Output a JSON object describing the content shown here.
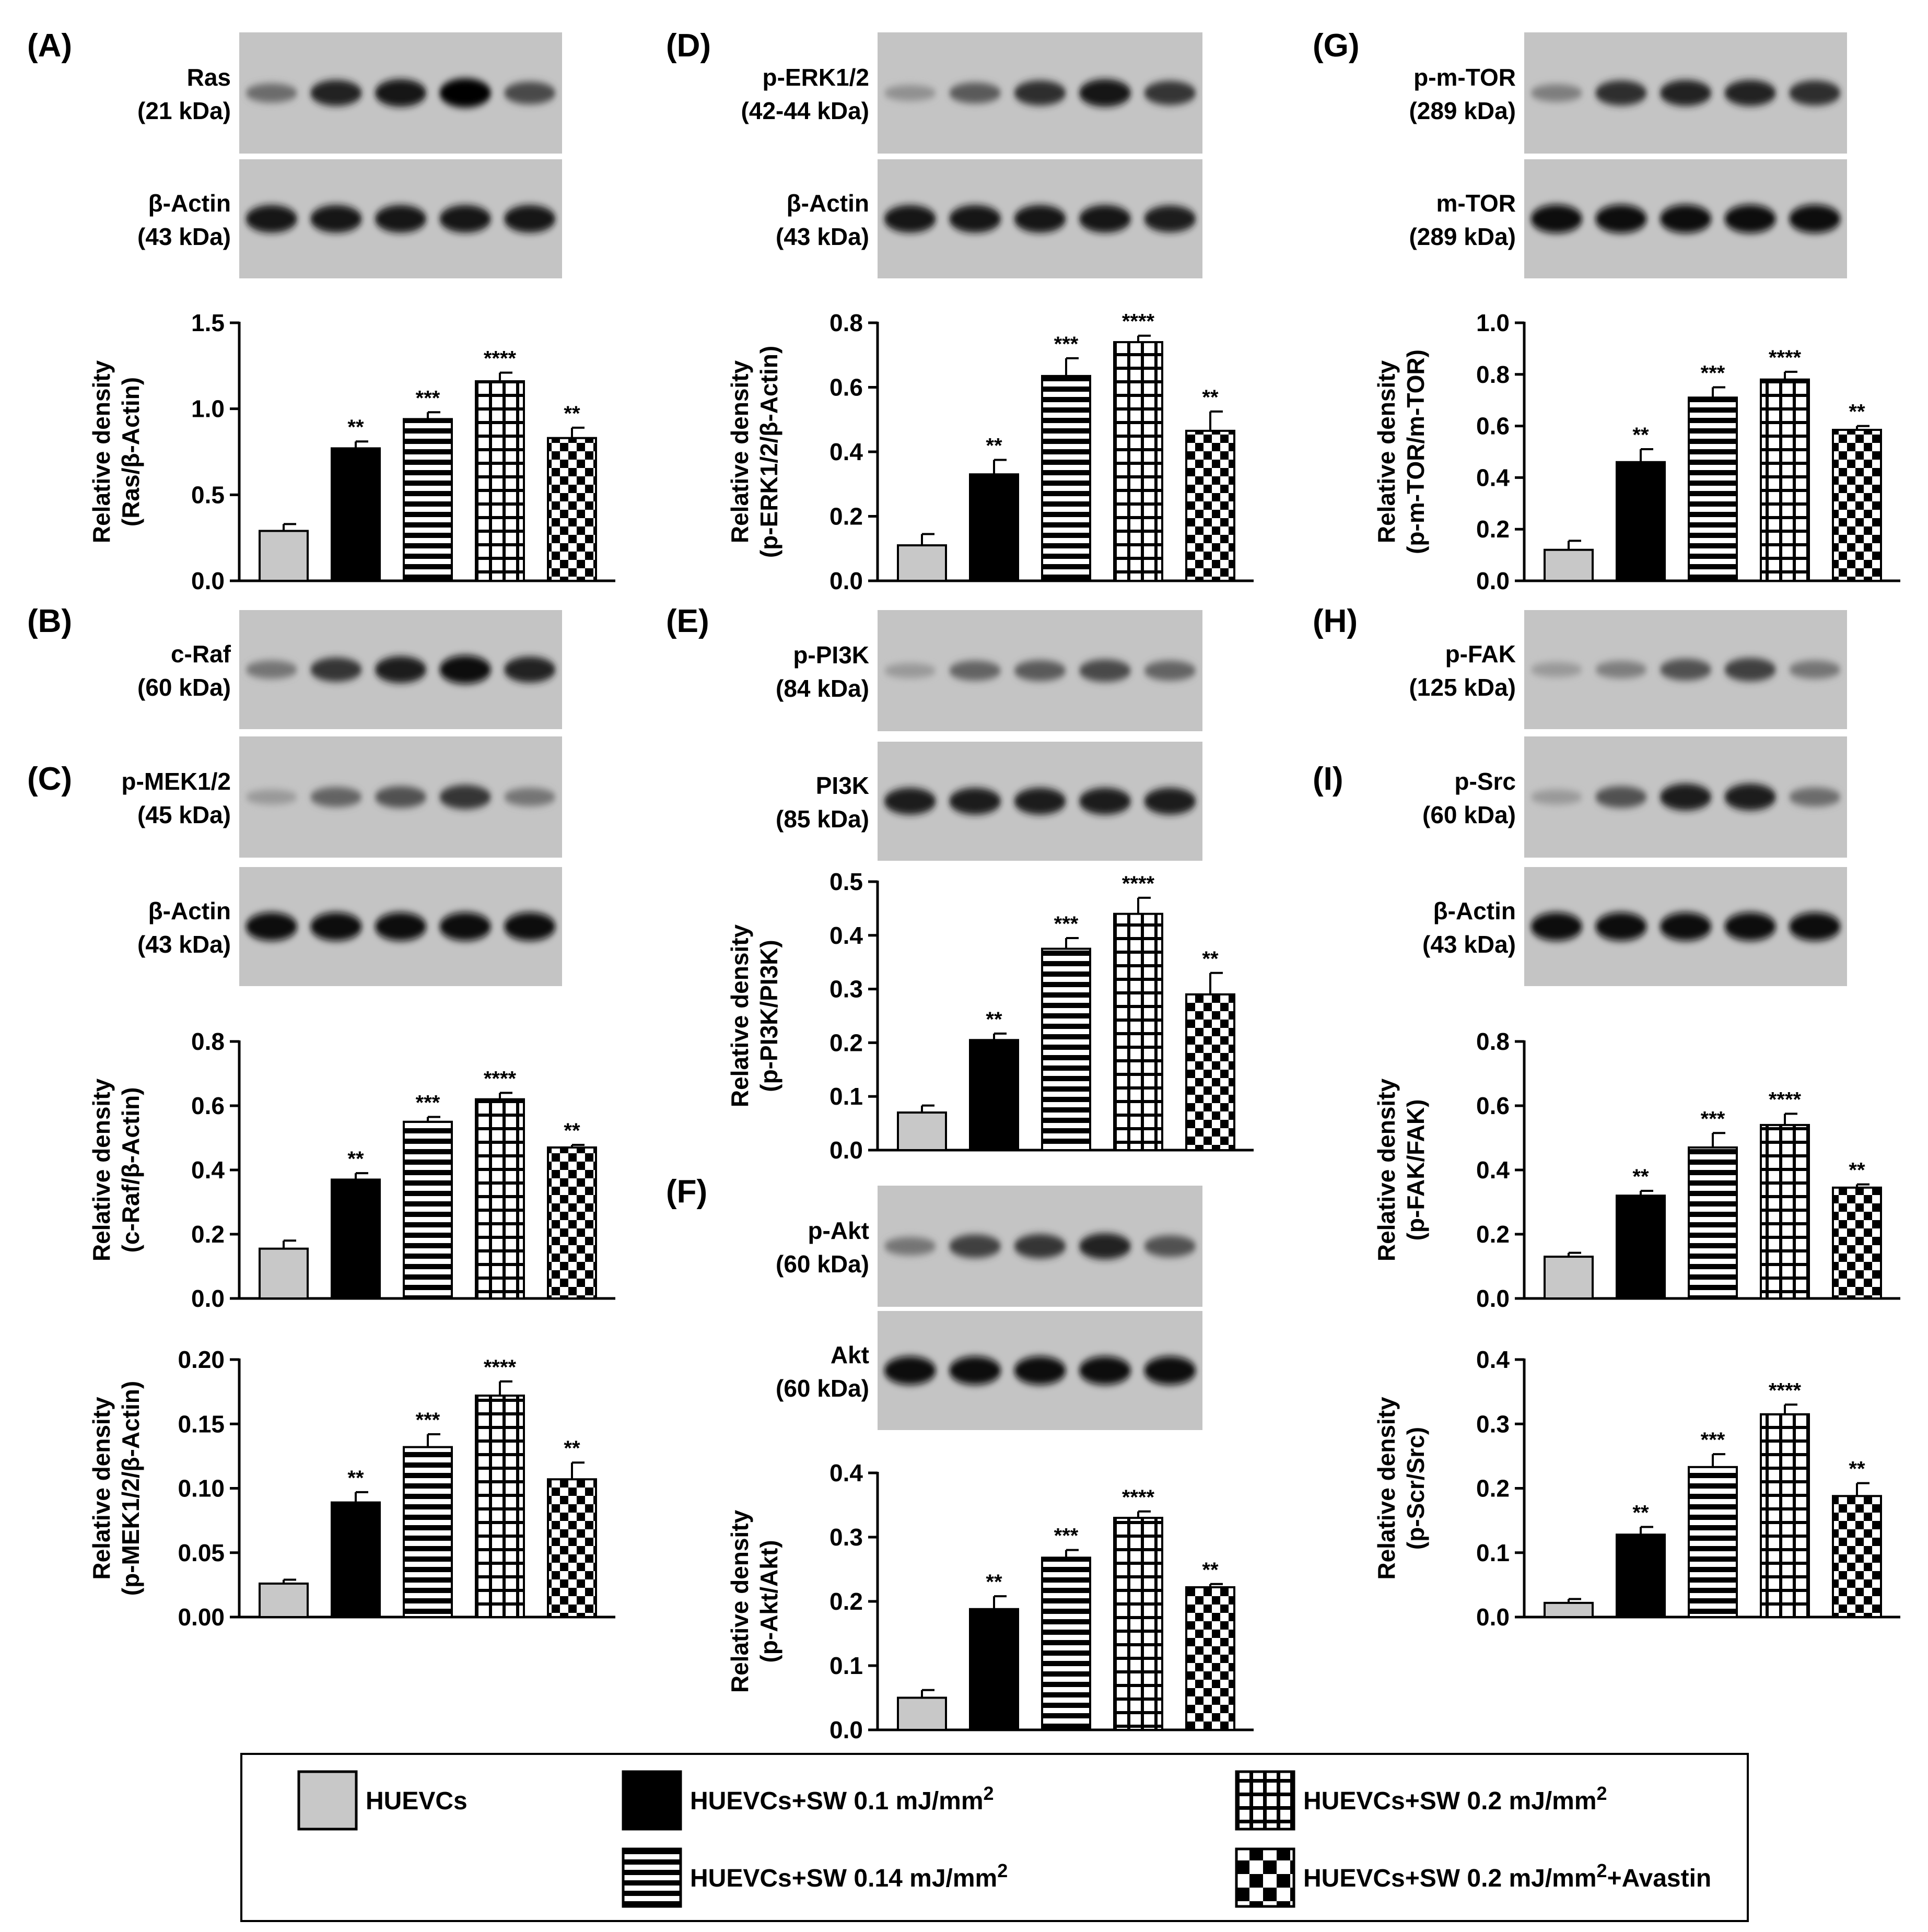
{
  "panels": {
    "A": {
      "letter": "(A)"
    },
    "B": {
      "letter": "(B)"
    },
    "C": {
      "letter": "(C)"
    },
    "D": {
      "letter": "(D)"
    },
    "E": {
      "letter": "(E)"
    },
    "F": {
      "letter": "(F)"
    },
    "G": {
      "letter": "(G)"
    },
    "H": {
      "letter": "(H)"
    },
    "I": {
      "letter": "(I)"
    }
  },
  "blots": {
    "ras": {
      "name": "Ras",
      "kda": "(21 kDa)",
      "intensity": [
        0.4,
        0.8,
        0.9,
        1.0,
        0.6
      ]
    },
    "actin_a": {
      "name": "β-Actin",
      "kda": "(43 kDa)",
      "intensity": [
        0.9,
        0.9,
        0.9,
        0.9,
        0.9
      ]
    },
    "craf": {
      "name": "c-Raf",
      "kda": "(60 kDa)",
      "intensity": [
        0.35,
        0.7,
        0.85,
        0.95,
        0.8
      ]
    },
    "pmek": {
      "name": "p-MEK1/2",
      "kda": "(45 kDa)",
      "intensity": [
        0.15,
        0.45,
        0.55,
        0.7,
        0.35
      ]
    },
    "actin_c": {
      "name": "β-Actin",
      "kda": "(43 kDa)",
      "intensity": [
        0.95,
        0.95,
        0.95,
        0.95,
        0.95
      ]
    },
    "perk": {
      "name": "p-ERK1/2",
      "kda": "(42-44 kDa)",
      "intensity": [
        0.2,
        0.5,
        0.75,
        0.9,
        0.7
      ]
    },
    "actin_d": {
      "name": "β-Actin",
      "kda": "(43 kDa)",
      "intensity": [
        0.9,
        0.9,
        0.9,
        0.9,
        0.85
      ]
    },
    "ppi3k": {
      "name": "p-PI3K",
      "kda": "(84 kDa)",
      "intensity": [
        0.15,
        0.45,
        0.5,
        0.6,
        0.45
      ]
    },
    "pi3k": {
      "name": "PI3K",
      "kda": "(85 kDa)",
      "intensity": [
        0.85,
        0.85,
        0.85,
        0.85,
        0.85
      ]
    },
    "pakt": {
      "name": "p-Akt",
      "kda": "(60 kDa)",
      "intensity": [
        0.35,
        0.65,
        0.7,
        0.8,
        0.55
      ]
    },
    "akt": {
      "name": "Akt",
      "kda": "(60 kDa)",
      "intensity": [
        0.95,
        0.95,
        0.95,
        0.95,
        0.95
      ]
    },
    "pmtor": {
      "name": "p-m-TOR",
      "kda": "(289 kDa)",
      "intensity": [
        0.3,
        0.75,
        0.8,
        0.8,
        0.75
      ]
    },
    "mtor": {
      "name": "m-TOR",
      "kda": "(289 kDa)",
      "intensity": [
        0.95,
        0.95,
        0.95,
        0.95,
        0.95
      ]
    },
    "pfak": {
      "name": "p-FAK",
      "kda": "(125 kDa)",
      "intensity": [
        0.15,
        0.3,
        0.55,
        0.65,
        0.35
      ]
    },
    "psrc": {
      "name": "p-Src",
      "kda": "(60 kDa)",
      "intensity": [
        0.15,
        0.55,
        0.85,
        0.85,
        0.4
      ]
    },
    "actin_i": {
      "name": "β-Actin",
      "kda": "(43 kDa)",
      "intensity": [
        0.95,
        0.95,
        0.95,
        0.95,
        0.95
      ]
    }
  },
  "legend": {
    "items": [
      {
        "label": "HUEVCs",
        "sup": "",
        "suffix": "",
        "pattern": "gray"
      },
      {
        "label": "HUEVCs+SW 0.1 mJ/mm",
        "sup": "2",
        "suffix": "",
        "pattern": "black"
      },
      {
        "label": "HUEVCs+SW 0.2 mJ/mm",
        "sup": "2",
        "suffix": "",
        "pattern": "grid"
      },
      {
        "label": "HUEVCs+SW 0.14 mJ/mm",
        "sup": "2",
        "suffix": "",
        "pattern": "hstripe"
      },
      {
        "label": "HUEVCs+SW 0.2 mJ/mm",
        "sup": "2",
        "suffix": "+Avastin",
        "pattern": "checker"
      }
    ]
  },
  "colors": {
    "gray_bar": "#c8c8c8",
    "black_bar": "#000000",
    "axis": "#000000",
    "blot_bg": "#c4c4c4"
  },
  "chart_data": [
    {
      "id": "A",
      "type": "bar",
      "ylabel": [
        "Relative density",
        "(Ras/β-Actin)"
      ],
      "ylim": [
        0,
        1.5
      ],
      "ticks": [
        "0.0",
        "0.5",
        "1.0",
        "1.5"
      ],
      "values": [
        0.29,
        0.77,
        0.94,
        1.16,
        0.83
      ],
      "errors": [
        0.04,
        0.04,
        0.04,
        0.05,
        0.06
      ],
      "stars": [
        "",
        "**",
        "***",
        "****",
        "**"
      ]
    },
    {
      "id": "C1",
      "type": "bar",
      "ylabel": [
        "Relative density",
        "(c-Raf/β-Actin)"
      ],
      "ylim": [
        0,
        0.8
      ],
      "ticks": [
        "0.0",
        "0.2",
        "0.4",
        "0.6",
        "0.8"
      ],
      "values": [
        0.155,
        0.37,
        0.55,
        0.62,
        0.47
      ],
      "errors": [
        0.025,
        0.02,
        0.015,
        0.02,
        0.008
      ],
      "stars": [
        "",
        "**",
        "***",
        "****",
        "**"
      ]
    },
    {
      "id": "C2",
      "type": "bar",
      "ylabel": [
        "Relative density",
        "(p-MEK1/2/β-Actin)"
      ],
      "ylim": [
        0,
        0.2
      ],
      "ticks": [
        "0.00",
        "0.05",
        "0.10",
        "0.15",
        "0.20"
      ],
      "values": [
        0.026,
        0.089,
        0.132,
        0.172,
        0.107
      ],
      "errors": [
        0.003,
        0.008,
        0.01,
        0.011,
        0.013
      ],
      "stars": [
        "",
        "**",
        "***",
        "****",
        "**"
      ]
    },
    {
      "id": "D",
      "type": "bar",
      "ylabel": [
        "Relative density",
        "(p-ERK1/2/β-Actin)"
      ],
      "ylim": [
        0,
        0.8
      ],
      "ticks": [
        "0.0",
        "0.2",
        "0.4",
        "0.6",
        "0.8"
      ],
      "values": [
        0.11,
        0.33,
        0.635,
        0.74,
        0.465
      ],
      "errors": [
        0.035,
        0.045,
        0.055,
        0.02,
        0.06
      ],
      "stars": [
        "",
        "**",
        "***",
        "****",
        "**"
      ]
    },
    {
      "id": "E",
      "type": "bar",
      "ylabel": [
        "Relative density",
        "(p-PI3K/PI3K)"
      ],
      "ylim": [
        0,
        0.5
      ],
      "ticks": [
        "0.0",
        "0.1",
        "0.2",
        "0.3",
        "0.4",
        "0.5"
      ],
      "values": [
        0.07,
        0.205,
        0.375,
        0.44,
        0.29
      ],
      "errors": [
        0.013,
        0.012,
        0.02,
        0.03,
        0.04
      ],
      "stars": [
        "",
        "**",
        "***",
        "****",
        "**"
      ]
    },
    {
      "id": "F",
      "type": "bar",
      "ylabel": [
        "Relative density",
        "(p-Akt/Akt)"
      ],
      "ylim": [
        0,
        0.4
      ],
      "ticks": [
        "0.0",
        "0.1",
        "0.2",
        "0.3",
        "0.4"
      ],
      "values": [
        0.05,
        0.188,
        0.268,
        0.33,
        0.222
      ],
      "errors": [
        0.012,
        0.02,
        0.012,
        0.01,
        0.005
      ],
      "stars": [
        "",
        "**",
        "***",
        "****",
        "**"
      ]
    },
    {
      "id": "G",
      "type": "bar",
      "ylabel": [
        "Relative density",
        "(p-m-TOR/m-TOR)"
      ],
      "ylim": [
        0,
        1.0
      ],
      "ticks": [
        "0.0",
        "0.2",
        "0.4",
        "0.6",
        "0.8",
        "1.0"
      ],
      "values": [
        0.12,
        0.46,
        0.71,
        0.78,
        0.585
      ],
      "errors": [
        0.035,
        0.05,
        0.04,
        0.03,
        0.015
      ],
      "stars": [
        "",
        "**",
        "***",
        "****",
        "**"
      ]
    },
    {
      "id": "I1",
      "type": "bar",
      "ylabel": [
        "Relative density",
        "(p-FAK/FAK)"
      ],
      "ylim": [
        0,
        0.8
      ],
      "ticks": [
        "0.0",
        "0.2",
        "0.4",
        "0.6",
        "0.8"
      ],
      "values": [
        0.13,
        0.32,
        0.47,
        0.54,
        0.345
      ],
      "errors": [
        0.012,
        0.015,
        0.045,
        0.035,
        0.01
      ],
      "stars": [
        "",
        "**",
        "***",
        "****",
        "**"
      ]
    },
    {
      "id": "I2",
      "type": "bar",
      "ylabel": [
        "Relative density",
        "(p-Scr/Src)"
      ],
      "ylim": [
        0,
        0.4
      ],
      "ticks": [
        "0.0",
        "0.1",
        "0.2",
        "0.3",
        "0.4"
      ],
      "values": [
        0.022,
        0.128,
        0.233,
        0.315,
        0.188
      ],
      "errors": [
        0.006,
        0.012,
        0.02,
        0.015,
        0.02
      ],
      "stars": [
        "",
        "**",
        "***",
        "****",
        "**"
      ]
    }
  ]
}
